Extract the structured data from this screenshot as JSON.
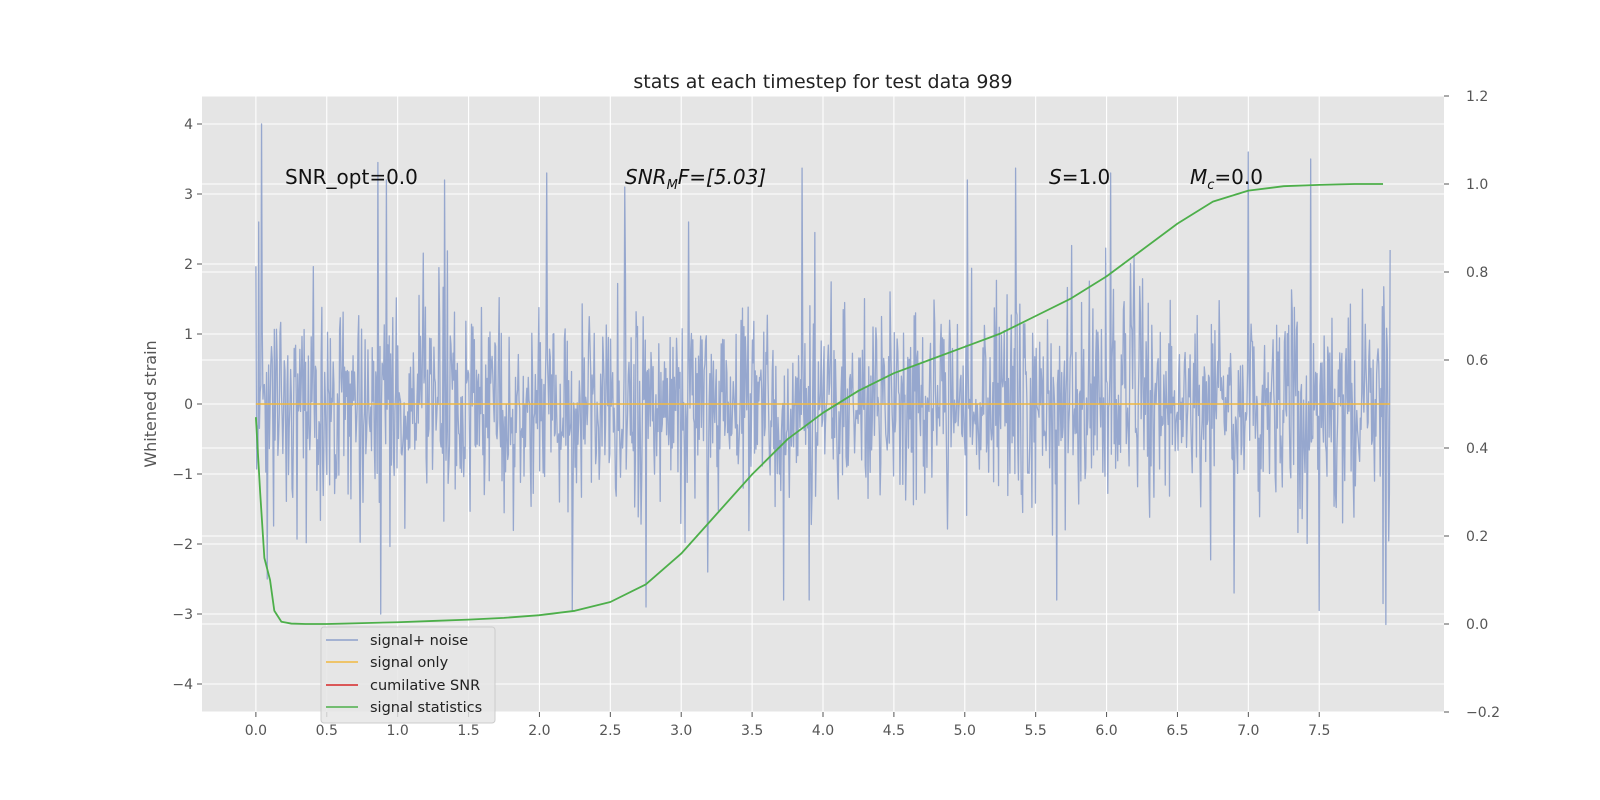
{
  "chart_data": {
    "type": "line",
    "title": "stats at each timestep for test data 989",
    "xlabel": "",
    "ylabel": "Whitened strain",
    "y2label": "",
    "xlim": [
      -0.38,
      8.38
    ],
    "ylim": [
      -4.4,
      4.4
    ],
    "y2lim": [
      -0.2,
      1.2
    ],
    "x_ticks": [
      "0.0",
      "0.5",
      "1.0",
      "1.5",
      "2.0",
      "2.5",
      "3.0",
      "3.5",
      "4.0",
      "4.5",
      "5.0",
      "5.5",
      "6.0",
      "6.5",
      "7.0",
      "7.5"
    ],
    "y_ticks": [
      "4",
      "3",
      "2",
      "1",
      "0",
      "−1",
      "−2",
      "−3",
      "−4"
    ],
    "y2_ticks": [
      "1.2",
      "1.0",
      "0.8",
      "0.6",
      "0.4",
      "0.2",
      "0.0",
      "−0.2"
    ],
    "grid": true,
    "legend_position": "lower-left",
    "annotations": [
      {
        "id": "snr-opt",
        "text": "SNR_opt=0.0"
      },
      {
        "id": "snr-mf",
        "main": "SNR",
        "sub": "M",
        "rest": "F=[5.03]"
      },
      {
        "id": "s",
        "main": "S",
        "rest": "=1.0"
      },
      {
        "id": "mc",
        "main": "M",
        "sub": "c",
        "rest": "=0.0"
      }
    ],
    "series": [
      {
        "name": "signal+ noise",
        "color": "#8da0cb",
        "axis": "left",
        "x_range": [
          0.0,
          8.0
        ],
        "sample_count": 1600,
        "description_values": {
          "mean": 0.0,
          "std": 0.75,
          "max": 4.0,
          "min": -3.15
        },
        "spikes": [
          [
            0.02,
            2.6
          ],
          [
            0.04,
            4.0
          ],
          [
            0.08,
            -2.5
          ],
          [
            0.86,
            3.45
          ],
          [
            0.88,
            -3.0
          ],
          [
            0.92,
            3.2
          ],
          [
            1.33,
            3.2
          ],
          [
            2.05,
            3.3
          ],
          [
            2.23,
            -2.95
          ],
          [
            2.6,
            3.1
          ],
          [
            2.75,
            -2.9
          ],
          [
            3.05,
            2.6
          ],
          [
            3.85,
            3.37
          ],
          [
            3.72,
            -2.8
          ],
          [
            3.9,
            -2.8
          ],
          [
            5.02,
            3.2
          ],
          [
            5.36,
            3.37
          ],
          [
            5.65,
            -2.8
          ],
          [
            6.03,
            3.3
          ],
          [
            6.9,
            -2.7
          ],
          [
            7.0,
            3.6
          ],
          [
            7.44,
            3.5
          ],
          [
            7.5,
            -2.95
          ],
          [
            7.95,
            -2.85
          ],
          [
            7.97,
            -3.15
          ],
          [
            8.0,
            2.2
          ]
        ]
      },
      {
        "name": "signal only",
        "color": "#f0b840",
        "axis": "left",
        "x": [
          0.0,
          8.0
        ],
        "y": [
          0.0,
          0.0
        ]
      },
      {
        "name": "cumilative SNR",
        "color": "#d62728",
        "axis": "left",
        "x": [],
        "y": []
      },
      {
        "name": "signal statistics",
        "color": "#4daf4a",
        "axis": "right",
        "x": [
          0.0,
          0.03,
          0.06,
          0.1,
          0.13,
          0.18,
          0.25,
          0.35,
          0.5,
          0.75,
          1.0,
          1.25,
          1.5,
          1.75,
          2.0,
          2.25,
          2.5,
          2.75,
          3.0,
          3.25,
          3.5,
          3.75,
          4.0,
          4.25,
          4.5,
          4.75,
          5.0,
          5.25,
          5.5,
          5.75,
          6.0,
          6.25,
          6.5,
          6.75,
          7.0,
          7.25,
          7.5,
          7.75,
          7.95
        ],
        "y": [
          0.47,
          0.3,
          0.15,
          0.1,
          0.03,
          0.005,
          0.001,
          0.0,
          0.0,
          0.002,
          0.004,
          0.007,
          0.01,
          0.014,
          0.02,
          0.03,
          0.05,
          0.09,
          0.16,
          0.25,
          0.34,
          0.42,
          0.48,
          0.53,
          0.57,
          0.6,
          0.63,
          0.66,
          0.7,
          0.74,
          0.79,
          0.85,
          0.91,
          0.96,
          0.985,
          0.995,
          0.998,
          1.0,
          1.0
        ]
      }
    ]
  }
}
